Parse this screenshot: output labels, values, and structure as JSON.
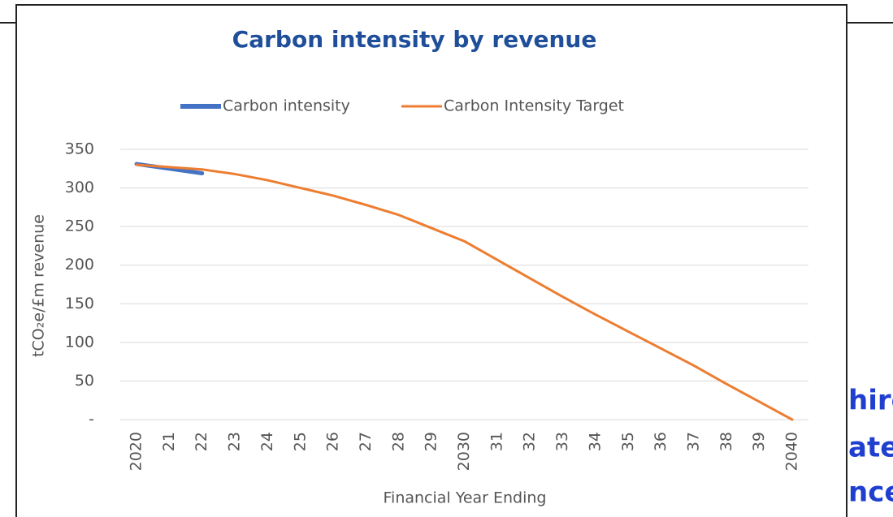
{
  "chart_data": {
    "type": "line",
    "title": "Carbon intensity by revenue",
    "x_label": "Financial Year Ending",
    "y_label": "tCO₂e/£m revenue",
    "categories": [
      "2020",
      "21",
      "22",
      "23",
      "24",
      "25",
      "26",
      "27",
      "28",
      "29",
      "2030",
      "31",
      "32",
      "33",
      "34",
      "35",
      "36",
      "37",
      "38",
      "39",
      "2040"
    ],
    "series": [
      {
        "name": "Carbon intensity",
        "color": "#4472c4",
        "values": [
          331,
          325,
          319,
          null,
          null,
          null,
          null,
          null,
          null,
          null,
          null,
          null,
          null,
          null,
          null,
          null,
          null,
          null,
          null,
          null,
          null
        ]
      },
      {
        "name": "Carbon Intensity Target",
        "color": "#ed7d31",
        "values": [
          330,
          327,
          324,
          318,
          310,
          300,
          290,
          278,
          265,
          248,
          231,
          207,
          183,
          159,
          136,
          114,
          92,
          70,
          46,
          23,
          0
        ]
      }
    ],
    "ylim": [
      0,
      350
    ],
    "yticks": [
      {
        "value": 0,
        "label": "-"
      },
      50,
      100,
      150,
      200,
      250,
      300,
      350
    ],
    "grid": true,
    "legend": "top"
  },
  "background_text": [
    "hire",
    "ate",
    "nce"
  ]
}
